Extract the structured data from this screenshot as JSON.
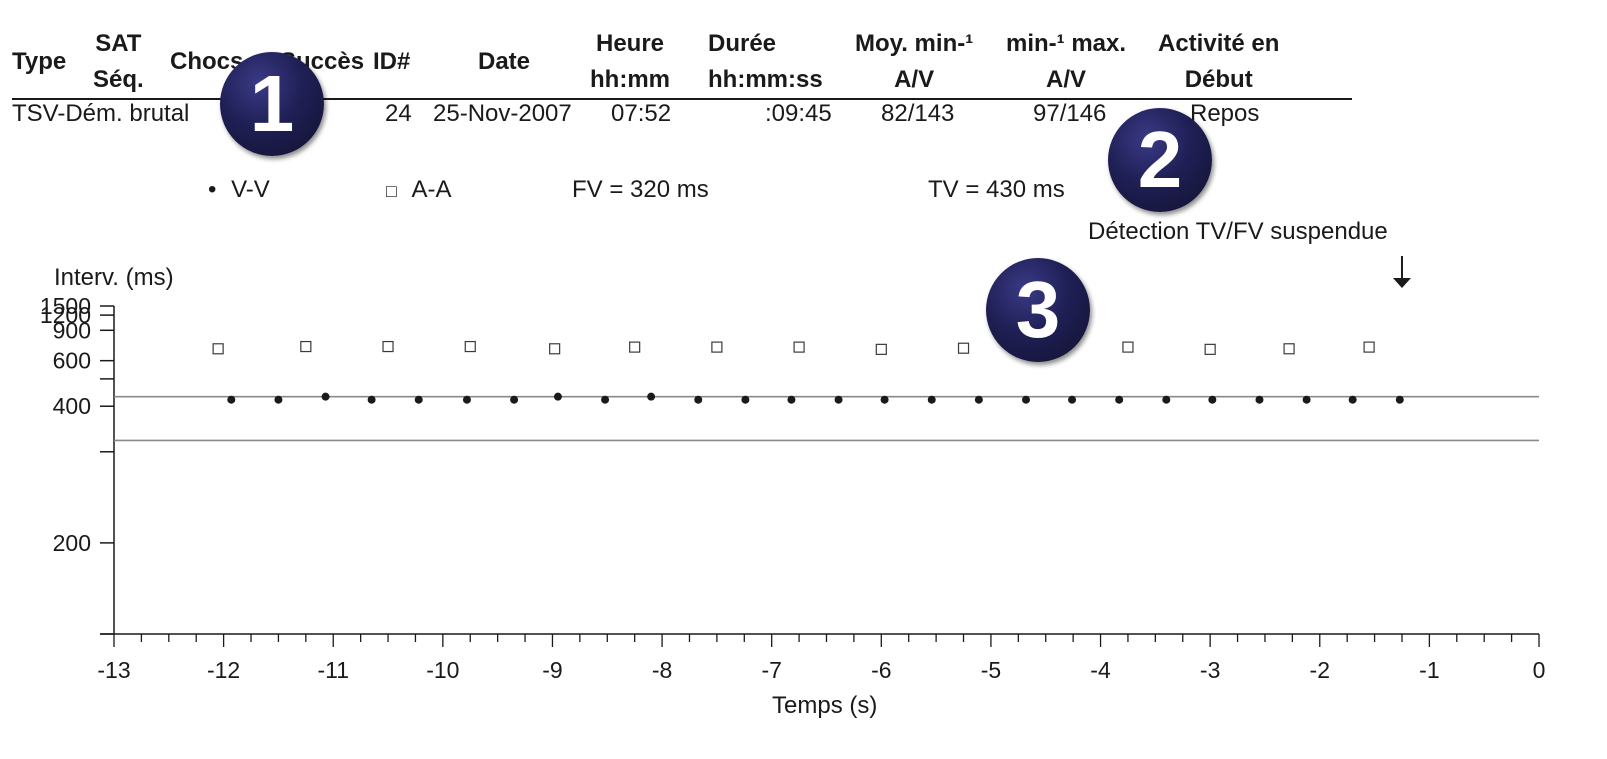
{
  "table": {
    "headers": [
      {
        "id": "type",
        "line1": "Type",
        "line2": ""
      },
      {
        "id": "sat",
        "line1": "SAT",
        "line2": "Séq."
      },
      {
        "id": "chocs",
        "line1": "Chocs",
        "line2": ""
      },
      {
        "id": "succes",
        "line1": "Succès",
        "line2": ""
      },
      {
        "id": "id",
        "line1": "ID#",
        "line2": ""
      },
      {
        "id": "date",
        "line1": "Date",
        "line2": ""
      },
      {
        "id": "heure",
        "line1": "Heure",
        "line2": "hh:mm"
      },
      {
        "id": "duree",
        "line1": "Durée",
        "line2": "hh:mm:ss"
      },
      {
        "id": "moy",
        "line1": "Moy. min-¹",
        "line2": "A/V"
      },
      {
        "id": "max",
        "line1": "min-¹ max.",
        "line2": "A/V"
      },
      {
        "id": "activite",
        "line1": "Activité en",
        "line2": "Début"
      }
    ],
    "row": {
      "type": "TSV-Dém. brutal",
      "id": "24",
      "date": "25-Nov-2007",
      "heure": "07:52",
      "duree": ":09:45",
      "moy": "82/143",
      "max": "97/146",
      "activite": "Repos"
    }
  },
  "legend": {
    "vv_symbol": "•",
    "vv_label": "V-V",
    "aa_symbol": "□",
    "aa_label": "A-A",
    "fv": "FV = 320 ms",
    "tv": "TV = 430 ms"
  },
  "annotation": {
    "text": "Détection TV/FV suspendue",
    "arrow": "↓",
    "time": -1.25
  },
  "badges": [
    "1",
    "2",
    "3"
  ],
  "chart_data": {
    "type": "scatter",
    "ylabel": "Interv. (ms)",
    "xlabel": "Temps (s)",
    "xlim": [
      -13,
      0
    ],
    "x_ticks": [
      -13,
      -12,
      -11,
      -10,
      -9,
      -8,
      -7,
      -6,
      -5,
      -4,
      -3,
      -2,
      -1,
      0
    ],
    "x_minor_step": 0.25,
    "y_ticks": [
      1500,
      1200,
      900,
      600,
      400,
      200
    ],
    "y_tick_positions": [
      1500,
      1200,
      900,
      600,
      500,
      400,
      300,
      200,
      150
    ],
    "y_scale": "reciprocal",
    "ylim": [
      150,
      1500
    ],
    "thresholds": [
      {
        "name": "TV",
        "value": 430
      },
      {
        "name": "FV",
        "value": 320
      }
    ],
    "series": [
      {
        "name": "V-V",
        "marker": "dot",
        "points": [
          [
            -11.93,
            420
          ],
          [
            -11.5,
            420
          ],
          [
            -11.07,
            430
          ],
          [
            -10.65,
            420
          ],
          [
            -10.22,
            420
          ],
          [
            -9.78,
            420
          ],
          [
            -9.35,
            420
          ],
          [
            -8.95,
            430
          ],
          [
            -8.52,
            420
          ],
          [
            -8.1,
            430
          ],
          [
            -7.67,
            420
          ],
          [
            -7.24,
            420
          ],
          [
            -6.82,
            420
          ],
          [
            -6.39,
            420
          ],
          [
            -5.97,
            420
          ],
          [
            -5.54,
            420
          ],
          [
            -5.11,
            420
          ],
          [
            -4.68,
            420
          ],
          [
            -4.26,
            420
          ],
          [
            -3.83,
            420
          ],
          [
            -3.4,
            420
          ],
          [
            -2.98,
            420
          ],
          [
            -2.55,
            420
          ],
          [
            -2.12,
            420
          ],
          [
            -1.7,
            420
          ],
          [
            -1.27,
            420
          ]
        ]
      },
      {
        "name": "A-A",
        "marker": "square",
        "points": [
          [
            -12.05,
            690
          ],
          [
            -11.25,
            710
          ],
          [
            -10.5,
            710
          ],
          [
            -9.75,
            710
          ],
          [
            -8.98,
            690
          ],
          [
            -8.25,
            705
          ],
          [
            -7.5,
            705
          ],
          [
            -6.75,
            705
          ],
          [
            -6.0,
            685
          ],
          [
            -5.25,
            695
          ],
          [
            -4.5,
            710
          ],
          [
            -3.75,
            705
          ],
          [
            -3.0,
            685
          ],
          [
            -2.28,
            690
          ],
          [
            -1.55,
            705
          ]
        ]
      }
    ]
  }
}
